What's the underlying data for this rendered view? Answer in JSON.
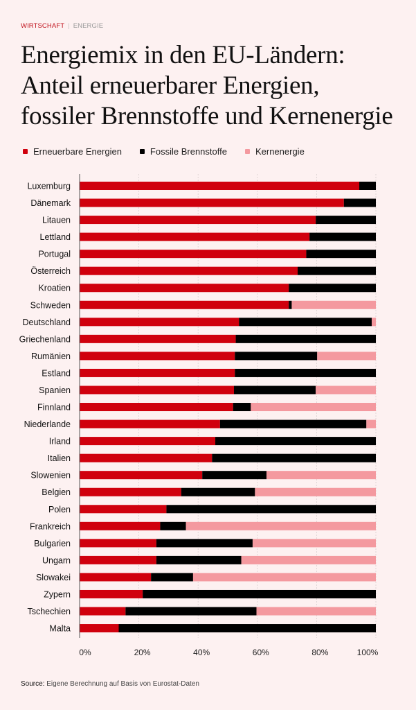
{
  "kicker": {
    "section": "WIRTSCHAFT",
    "separator": "|",
    "subsection": "ENERGIE"
  },
  "title_lines": [
    "Energiemix in den EU-Ländern:",
    "Anteil erneuerbarer Energien,",
    "fossiler Brennstoffe und Kernenergie"
  ],
  "colors": {
    "renewable": "#d0000d",
    "fossil": "#000000",
    "nuclear": "#f4999f",
    "background": "#fdf1f1",
    "accent": "#c0111c"
  },
  "source": {
    "label": "Source:",
    "text": "Eigene Berechnung auf Basis von Eurostat-Daten"
  },
  "chart_data": {
    "type": "bar",
    "orientation": "horizontal",
    "stacked": true,
    "normalized": true,
    "title": "Energiemix in den EU-Ländern: Anteil erneuerbarer Energien, fossiler Brennstoffe und Kernenergie",
    "xlabel": "",
    "ylabel": "",
    "xlim": [
      0,
      100
    ],
    "x_ticks": [
      "0%",
      "20%",
      "40%",
      "60%",
      "80%",
      "100%"
    ],
    "x_tick_values": [
      0,
      20,
      40,
      60,
      80,
      100
    ],
    "grid": "vertical dashed",
    "legend_position": "top-left",
    "categories": [
      "Luxemburg",
      "Dänemark",
      "Litauen",
      "Lettland",
      "Portugal",
      "Österreich",
      "Kroatien",
      "Schweden",
      "Deutschland",
      "Griechenland",
      "Rumänien",
      "Estland",
      "Spanien",
      "Finnland",
      "Niederlande",
      "Irland",
      "Italien",
      "Slowenien",
      "Belgien",
      "Polen",
      "Frankreich",
      "Bulgarien",
      "Ungarn",
      "Slowakei",
      "Zypern",
      "Tschechien",
      "Malta"
    ],
    "series": [
      {
        "name": "Erneuerbare Energien",
        "color": "#d0000d",
        "values": [
          94.4,
          89.2,
          79.7,
          77.6,
          76.5,
          73.6,
          70.6,
          70.6,
          53.8,
          52.7,
          52.4,
          52.4,
          52.1,
          51.8,
          47.4,
          45.8,
          44.7,
          41.4,
          34.3,
          29.3,
          27.2,
          25.9,
          25.9,
          24.1,
          21.3,
          15.5,
          13.2
        ]
      },
      {
        "name": "Fossile Brennstoffe",
        "color": "#000000",
        "values": [
          5.6,
          10.8,
          20.3,
          22.4,
          23.5,
          26.4,
          29.4,
          1.0,
          44.8,
          47.3,
          27.8,
          47.6,
          27.6,
          6.0,
          49.4,
          54.2,
          55.3,
          21.7,
          24.9,
          70.7,
          8.7,
          32.5,
          28.7,
          14.2,
          78.7,
          44.2,
          86.8
        ]
      },
      {
        "name": "Kernenergie",
        "color": "#f4999f",
        "values": [
          0,
          0,
          0,
          0,
          0,
          0,
          0,
          28.4,
          1.4,
          0,
          19.8,
          0,
          20.3,
          42.2,
          3.2,
          0,
          0,
          36.9,
          40.8,
          0,
          64.1,
          41.6,
          45.4,
          61.7,
          0,
          40.3,
          0
        ]
      }
    ]
  }
}
